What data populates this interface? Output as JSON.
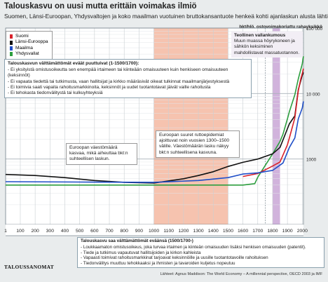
{
  "header": {
    "title": "Talouskasvu on uusi mutta erittäin voimakas ilmiö",
    "subtitle": "Suomen, Länsi-Euroopan, Yhdysvaltojen ja koko maailman vuotuinen bruttokansantuote henkeä kohti ajanlaskun alusta lähtien.",
    "unit": "bkt/hlö, ostovoimakorjattu rahayksikkö"
  },
  "colors": {
    "suomi": "#d9212a",
    "lansi_eurooppa": "#111111",
    "maailma": "#1f4ec8",
    "yhdysvallat": "#2d9e3f",
    "disruption_band": "#f5b9a1",
    "industrial_band": "#c9a6d6"
  },
  "top_box": {
    "heading": "Talouskasvun välttämättömät eväät puuttuivat (1-1500/1700):",
    "items": [
      "Ei yksityistä omistusoikeutta sen enempää irtaimeen tai kiinteään omaisuuteen kuin henkiseen omaisuuteen (keksinnöt)",
      "Ei vapaata tiedettä tai tutkimusta, vaan hallitsijat ja kirkko määräsivät oikeat tulkinnat maailmanjärjestyksestä",
      "Ei toimivia saati vapaita rahoitusmarkkinoita, keksinnöt ja uudet tuotantotavat jäivät vaille rahoitusta",
      "Ei tehokasta tiedonvälitystä tai kulkuyhteyksiä"
    ]
  },
  "industrial_box": {
    "heading": "Teollinen vallankumous",
    "text": "Muun muassa höyrykoneen ja sähkön keksiminen mahdollistavat massatuotannon."
  },
  "note_population": "Euroopan väestömäärä kasvaa, mikä aiheuttaa bkt:n suhteellisen laskun.",
  "note_plague": "Euroopan suuret ruttoepidemiat ajoittuvat noin vuosien 1300–1500 välille. Väestömäärän lasku näkyy bkt:n suhteellisena kasvuna.",
  "bottom_box": {
    "heading": "Talouskasvu saa välttämättömät eväänsä (1500/1700-)",
    "items": [
      "Loukkaamaton omistusoikeus, joka turvaa irtaimen ja kiinteän omaisuuden lisäksi henkisen omaisuuden (patentit).",
      "Tiede ja tutkimus vapautuvat hallitsijoiden ja kirkon kahleista",
      "Vapaasti toimivat rahoitusmarkkinat tarjoavat keksinnöille ja uusille tuotantotavoille rahoituksen",
      "Tiedonvälitys muuttuu tehokkaaksi ja ihmisten ja tavaroiden kuljetus nopeutuu"
    ]
  },
  "footer": {
    "logo": "TALOUSSANOMAT",
    "source": "Lähteet: Agnus Maddison: The World Economy – A millennial perspective, OECD 2003 ja IMF"
  },
  "chart_data": {
    "type": "line",
    "y_scale": "log",
    "ylim": [
      100,
      100000
    ],
    "xlim": [
      1,
      2008
    ],
    "x_ticks": [
      1,
      100,
      200,
      300,
      400,
      500,
      600,
      700,
      800,
      900,
      1000,
      1100,
      1200,
      1300,
      1400,
      1500,
      1600,
      1700,
      1800,
      1900,
      2000
    ],
    "y_ticks": [
      {
        "value": 1000,
        "label": "1000"
      },
      {
        "value": 10000,
        "label": "10 000"
      },
      {
        "value": 100000,
        "label": "100 000"
      }
    ],
    "grid": true,
    "highlight_bands": [
      {
        "from": 1000,
        "to": 1500,
        "color_key": "disruption_band"
      },
      {
        "from": 1800,
        "to": 1850,
        "color_key": "industrial_band"
      }
    ],
    "vline": 1750,
    "series": [
      {
        "name": "Suomi",
        "color_key": "suomi",
        "points": [
          [
            1600,
            540
          ],
          [
            1700,
            600
          ],
          [
            1800,
            780
          ],
          [
            1850,
            900
          ],
          [
            1900,
            1650
          ],
          [
            1913,
            2100
          ],
          [
            1950,
            4250
          ],
          [
            1973,
            11000
          ],
          [
            1990,
            16900
          ],
          [
            2000,
            20200
          ],
          [
            2008,
            24000
          ]
        ]
      },
      {
        "name": "Länsi-Eurooppa",
        "color_key": "lansi_eurooppa",
        "points": [
          [
            1,
            580
          ],
          [
            200,
            560
          ],
          [
            400,
            520
          ],
          [
            600,
            470
          ],
          [
            800,
            440
          ],
          [
            1000,
            430
          ],
          [
            1200,
            500
          ],
          [
            1300,
            560
          ],
          [
            1400,
            640
          ],
          [
            1500,
            770
          ],
          [
            1600,
            890
          ],
          [
            1700,
            998
          ],
          [
            1800,
            1200
          ],
          [
            1850,
            1500
          ],
          [
            1870,
            1960
          ],
          [
            1900,
            2900
          ],
          [
            1913,
            3450
          ],
          [
            1950,
            4570
          ],
          [
            1973,
            11400
          ],
          [
            2000,
            19000
          ],
          [
            2008,
            21000
          ]
        ]
      },
      {
        "name": "Maailma",
        "color_key": "maailma",
        "points": [
          [
            1,
            450
          ],
          [
            500,
            445
          ],
          [
            1000,
            440
          ],
          [
            1300,
            470
          ],
          [
            1500,
            520
          ],
          [
            1600,
            590
          ],
          [
            1700,
            615
          ],
          [
            1800,
            670
          ],
          [
            1870,
            870
          ],
          [
            1913,
            1500
          ],
          [
            1950,
            2100
          ],
          [
            1973,
            4100
          ],
          [
            2000,
            6000
          ],
          [
            2008,
            7600
          ]
        ]
      },
      {
        "name": "Yhdysvallat",
        "color_key": "yhdysvallat",
        "points": [
          [
            1,
            400
          ],
          [
            1500,
            400
          ],
          [
            1600,
            400
          ],
          [
            1680,
            420
          ],
          [
            1700,
            527
          ],
          [
            1800,
            1200
          ],
          [
            1850,
            1850
          ],
          [
            1870,
            2400
          ],
          [
            1900,
            4100
          ],
          [
            1913,
            5300
          ],
          [
            1950,
            9600
          ],
          [
            1973,
            16700
          ],
          [
            2000,
            28400
          ],
          [
            2008,
            37000
          ]
        ]
      }
    ]
  }
}
